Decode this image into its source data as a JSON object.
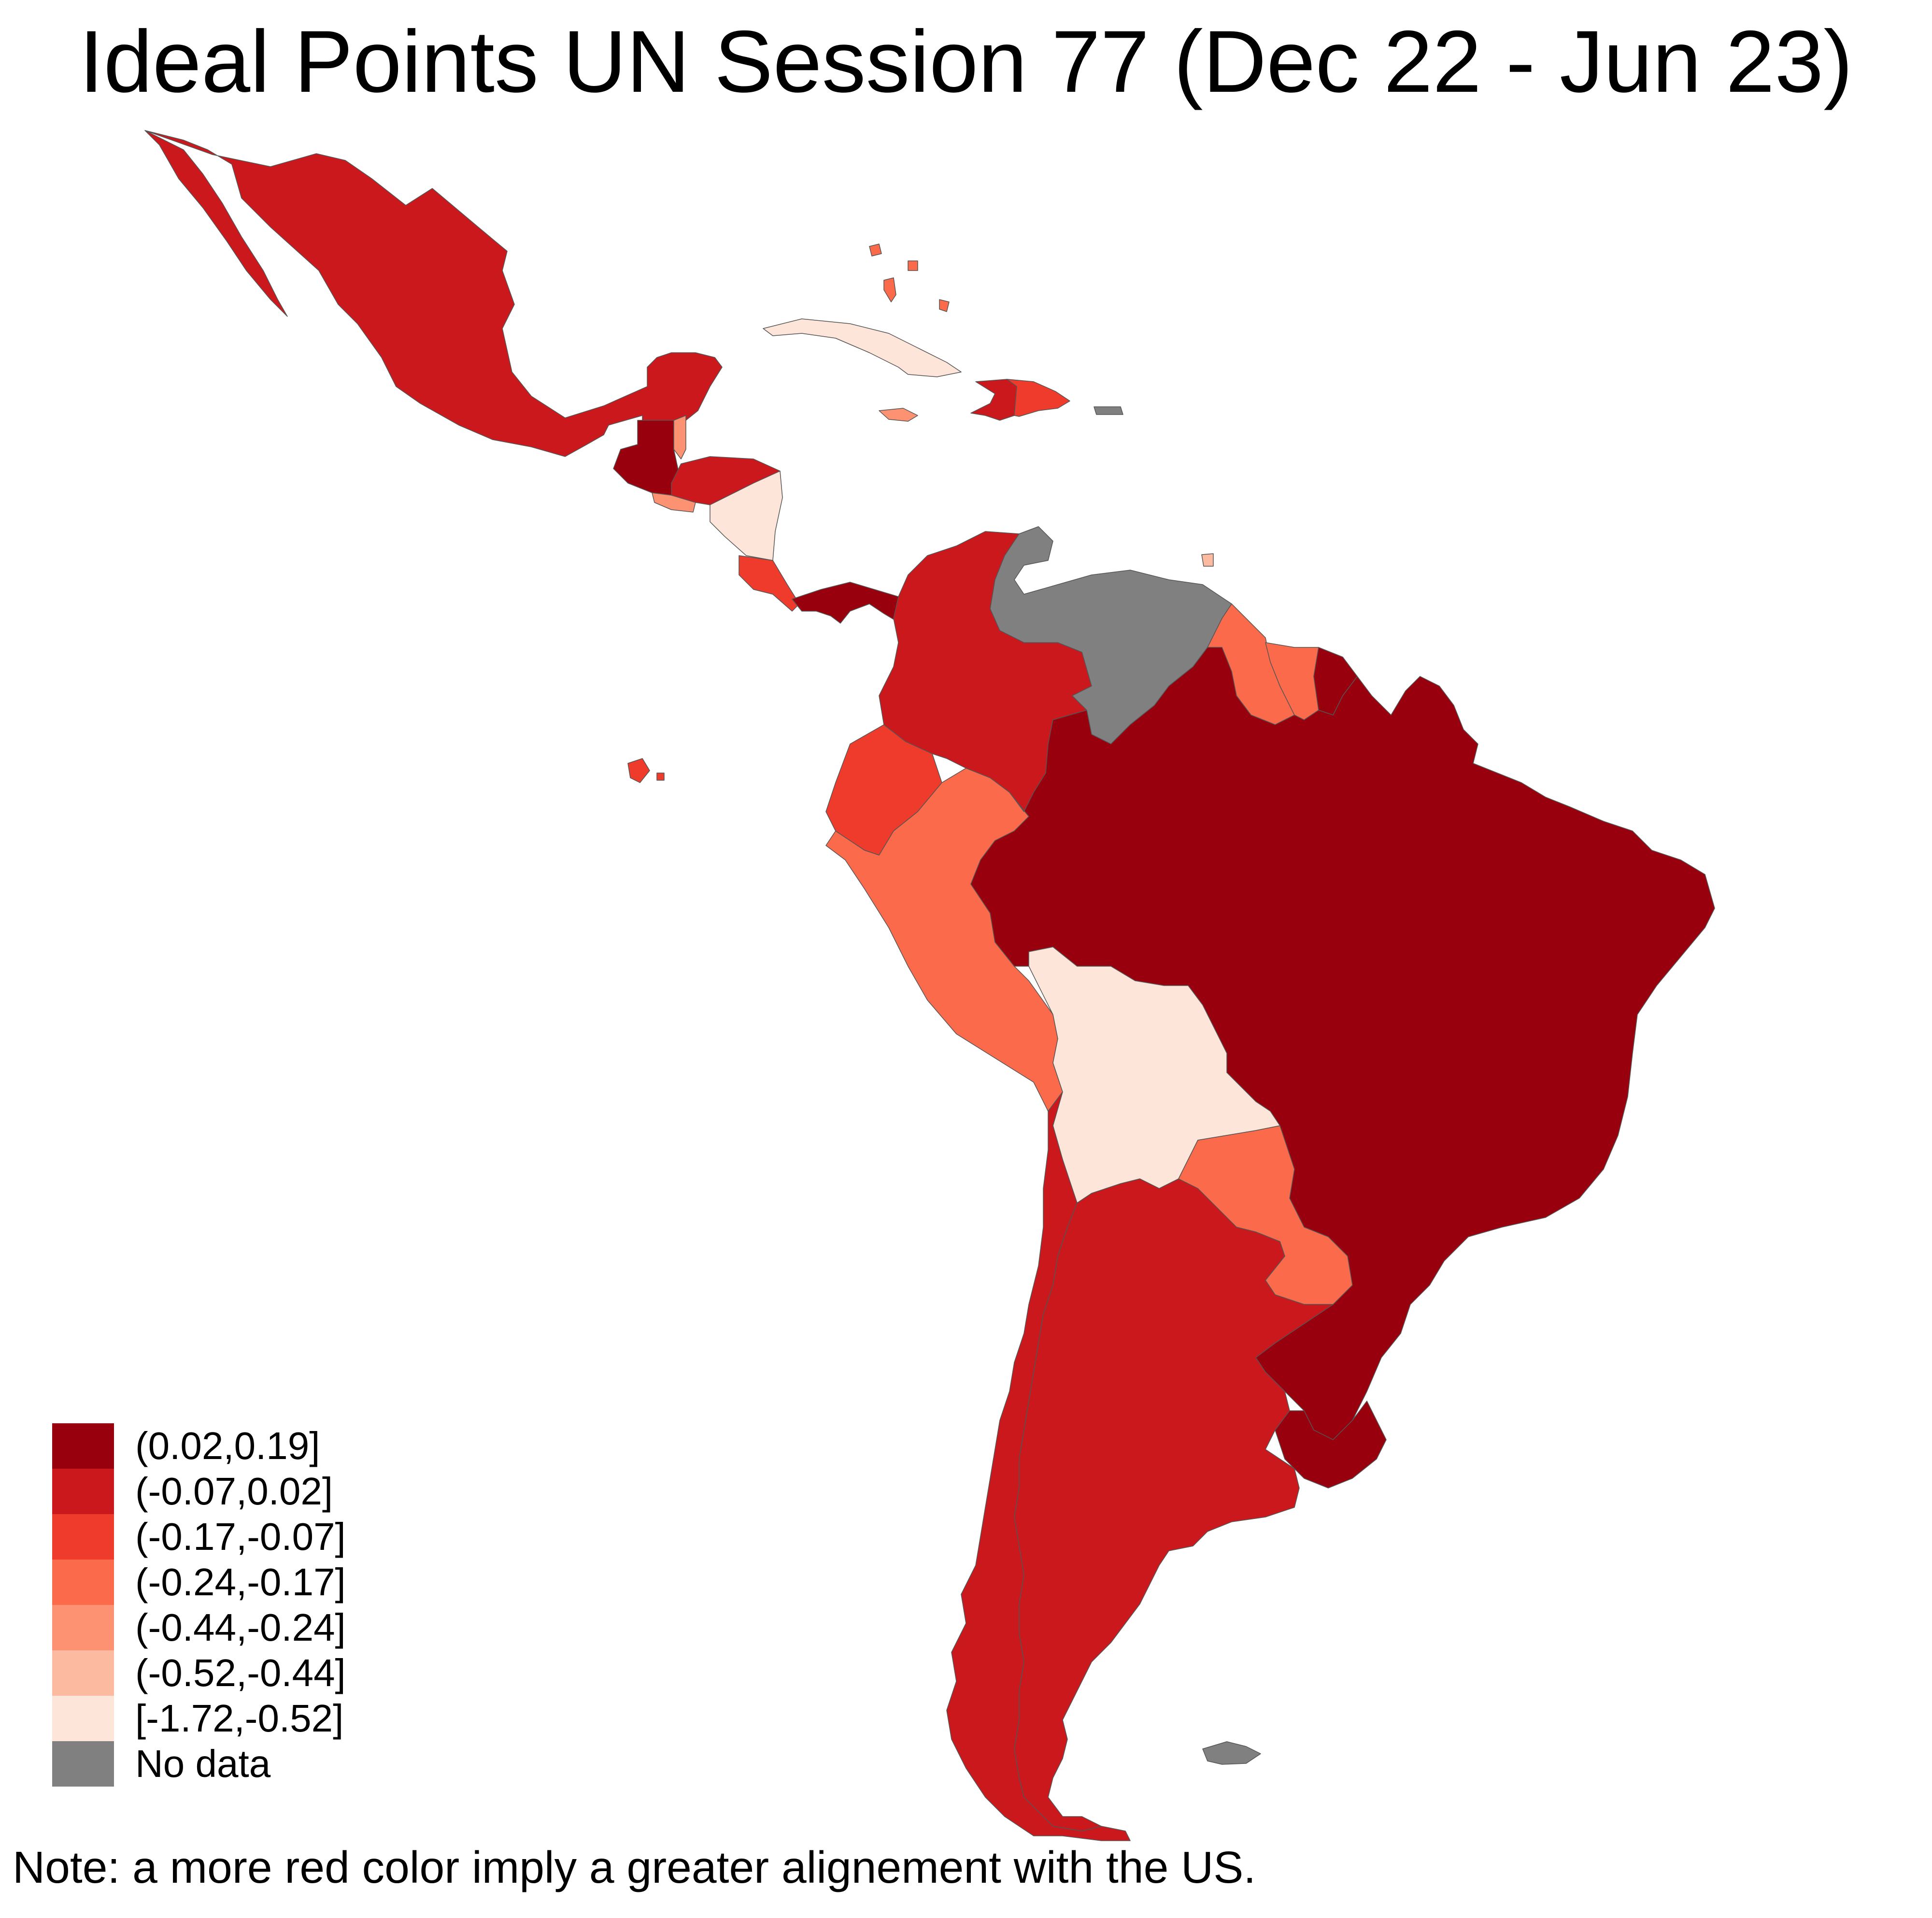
{
  "title": "Ideal Points UN Session 77 (Dec 22 - Jun 23)",
  "note": "Note: a more red color imply a greater alignement with the US.",
  "legend": [
    {
      "label": "(0.02,0.19]",
      "color": "#99000d"
    },
    {
      "label": "(-0.07,0.02]",
      "color": "#cb181d"
    },
    {
      "label": "(-0.17,-0.07]",
      "color": "#ef3b2c"
    },
    {
      "label": "(-0.24,-0.17]",
      "color": "#fb6a4a"
    },
    {
      "label": "(-0.44,-0.24]",
      "color": "#fc9272"
    },
    {
      "label": "(-0.52,-0.44]",
      "color": "#fcbba1"
    },
    {
      "label": "[-1.72,-0.52]",
      "color": "#fee5d9"
    },
    {
      "label": "No data",
      "color": "#808080"
    }
  ],
  "countries": [
    {
      "name": "Mexico",
      "bin": "(-0.07,0.02]"
    },
    {
      "name": "Guatemala",
      "bin": "(0.02,0.19]"
    },
    {
      "name": "Belize",
      "bin": "(-0.44,-0.24]"
    },
    {
      "name": "El Salvador",
      "bin": "(-0.44,-0.24]"
    },
    {
      "name": "Honduras",
      "bin": "(-0.07,0.02]"
    },
    {
      "name": "Nicaragua",
      "bin": "[-1.72,-0.52]"
    },
    {
      "name": "Costa Rica",
      "bin": "(-0.17,-0.07]"
    },
    {
      "name": "Panama",
      "bin": "(0.02,0.19]"
    },
    {
      "name": "Cuba",
      "bin": "[-1.72,-0.52]"
    },
    {
      "name": "Bahamas",
      "bin": "(-0.24,-0.17]"
    },
    {
      "name": "Jamaica",
      "bin": "(-0.44,-0.24]"
    },
    {
      "name": "Haiti",
      "bin": "(-0.07,0.02]"
    },
    {
      "name": "Dominican Republic",
      "bin": "(-0.17,-0.07]"
    },
    {
      "name": "Puerto Rico",
      "bin": "No data"
    },
    {
      "name": "Trinidad and Tobago",
      "bin": "(-0.52,-0.44]"
    },
    {
      "name": "Colombia",
      "bin": "(-0.07,0.02]"
    },
    {
      "name": "Venezuela",
      "bin": "No data"
    },
    {
      "name": "Guyana",
      "bin": "(-0.24,-0.17]"
    },
    {
      "name": "Suriname",
      "bin": "(-0.24,-0.17]"
    },
    {
      "name": "French Guiana",
      "bin": "(0.02,0.19]"
    },
    {
      "name": "Ecuador",
      "bin": "(-0.17,-0.07]"
    },
    {
      "name": "Peru",
      "bin": "(-0.24,-0.17]"
    },
    {
      "name": "Brazil",
      "bin": "(0.02,0.19]"
    },
    {
      "name": "Bolivia",
      "bin": "[-1.72,-0.52]"
    },
    {
      "name": "Paraguay",
      "bin": "(-0.24,-0.17]"
    },
    {
      "name": "Chile",
      "bin": "(-0.07,0.02]"
    },
    {
      "name": "Argentina",
      "bin": "(-0.07,0.02]"
    },
    {
      "name": "Uruguay",
      "bin": "(0.02,0.19]"
    },
    {
      "name": "Falkland Islands",
      "bin": "No data"
    }
  ]
}
